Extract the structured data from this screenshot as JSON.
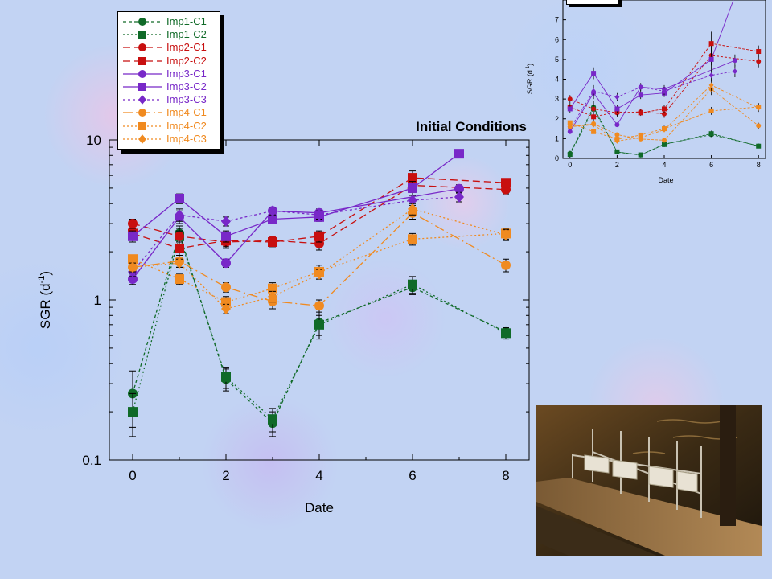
{
  "chart_data": [
    {
      "type": "line",
      "title": "Initial Conditions",
      "xlabel": "Date",
      "ylabel": "SGR (d",
      "ylabel_sup": "-1",
      "ylabel_end": ")",
      "yscale": "log",
      "xlim": [
        -0.5,
        8.5
      ],
      "ylim": [
        0.1,
        10
      ],
      "xticks": [
        0,
        2,
        4,
        6,
        8
      ],
      "xtick_labels": [
        "0",
        "2",
        "4",
        "6",
        "8"
      ],
      "yticks": [
        0.1,
        1,
        10
      ],
      "ytick_labels": [
        "0.1",
        "1",
        "10"
      ],
      "legend": "top-left",
      "series": [
        {
          "name": "Imp1-C1",
          "color": "#106a28",
          "marker": "circle",
          "dash": "4,3",
          "x": [
            0,
            1,
            2,
            3,
            4,
            6,
            8
          ],
          "y": [
            0.26,
            2.6,
            0.32,
            0.17,
            0.72,
            1.2,
            0.63
          ],
          "err": [
            0.1,
            0.3,
            0.05,
            0.03,
            0.15,
            0.12,
            0.04
          ]
        },
        {
          "name": "Imp1-C2",
          "color": "#106a28",
          "marker": "square",
          "dash": "2,3",
          "x": [
            0,
            1,
            2,
            3,
            4,
            6,
            8
          ],
          "y": [
            0.2,
            2.5,
            0.33,
            0.18,
            0.7,
            1.25,
            0.62
          ],
          "err": [
            0.06,
            0.3,
            0.05,
            0.03,
            0.1,
            0.15,
            0.05
          ]
        },
        {
          "name": "Imp2-C1",
          "color": "#c80f0f",
          "marker": "circle",
          "dash": "9,5",
          "x": [
            0,
            1,
            2,
            3,
            4,
            6,
            8
          ],
          "y": [
            3.0,
            2.5,
            2.3,
            2.35,
            2.25,
            5.2,
            4.9
          ],
          "err": [
            0.2,
            0.2,
            0.2,
            0.15,
            0.2,
            0.5,
            0.3
          ]
        },
        {
          "name": "Imp2-C2",
          "color": "#c80f0f",
          "marker": "square",
          "dash": "9,5",
          "x": [
            0,
            1,
            2,
            3,
            4,
            6,
            8
          ],
          "y": [
            2.6,
            2.1,
            2.35,
            2.3,
            2.5,
            5.8,
            5.4
          ],
          "err": [
            0.2,
            0.2,
            0.2,
            0.15,
            0.2,
            0.6,
            0.3
          ]
        },
        {
          "name": "Imp3-C1",
          "color": "#7828c8",
          "marker": "circle",
          "dash": "",
          "x": [
            0,
            1,
            2,
            3,
            4,
            7
          ],
          "y": [
            1.35,
            3.3,
            1.7,
            3.6,
            3.5,
            4.95
          ],
          "err": [
            0.1,
            0.3,
            0.1,
            0.2,
            0.2,
            0.3
          ]
        },
        {
          "name": "Imp3-C2",
          "color": "#7828c8",
          "marker": "square",
          "dash": "",
          "x": [
            0,
            1,
            2,
            3,
            4,
            6,
            7
          ],
          "y": [
            2.5,
            4.3,
            2.5,
            3.2,
            3.3,
            5.0,
            8.2
          ],
          "err": [
            0.2,
            0.3,
            0.2,
            0.2,
            0.2,
            0.5,
            0.4
          ]
        },
        {
          "name": "Imp3-C3",
          "color": "#7828c8",
          "marker": "diamond",
          "dash": "3,3",
          "x": [
            0,
            1,
            2,
            3,
            4,
            6,
            7
          ],
          "y": [
            1.5,
            3.4,
            3.1,
            3.6,
            3.4,
            4.2,
            4.4
          ],
          "err": [
            0.1,
            0.3,
            0.2,
            0.2,
            0.2,
            0.3,
            0.3
          ]
        },
        {
          "name": "Imp4-C1",
          "color": "#f08a20",
          "marker": "circle",
          "dash": "12,4,2,4",
          "x": [
            0,
            1,
            2,
            3,
            4,
            6,
            8
          ],
          "y": [
            1.6,
            1.75,
            1.2,
            0.98,
            0.92,
            3.5,
            1.65
          ],
          "err": [
            0.1,
            0.15,
            0.08,
            0.1,
            0.08,
            0.3,
            0.15
          ]
        },
        {
          "name": "Imp4-C2",
          "color": "#f08a20",
          "marker": "square",
          "dash": "2,3",
          "x": [
            0,
            1,
            2,
            3,
            4,
            6,
            8
          ],
          "y": [
            1.8,
            1.35,
            0.97,
            1.18,
            1.5,
            2.4,
            2.6
          ],
          "err": [
            0.1,
            0.1,
            0.08,
            0.1,
            0.15,
            0.2,
            0.2
          ]
        },
        {
          "name": "Imp4-C3",
          "color": "#f08a20",
          "marker": "diamond",
          "dash": "2,3",
          "x": [
            0,
            1,
            2,
            3,
            4,
            6,
            8
          ],
          "y": [
            1.6,
            1.7,
            0.88,
            1.05,
            1.45,
            3.7,
            2.55
          ],
          "err": [
            0.1,
            0.1,
            0.06,
            0.08,
            0.1,
            0.3,
            0.2
          ]
        }
      ]
    },
    {
      "type": "line",
      "xlabel": "Date",
      "ylabel": "SGR (d",
      "ylabel_sup": "-1",
      "ylabel_end": ")",
      "yscale": "linear",
      "xlim": [
        -0.3,
        8.3
      ],
      "ylim": [
        0,
        8
      ],
      "xticks": [
        0,
        2,
        4,
        6,
        8
      ],
      "xtick_labels": [
        "0",
        "2",
        "4",
        "6",
        "8"
      ],
      "yticks": [
        0,
        1,
        2,
        3,
        4,
        5,
        6,
        7
      ],
      "ytick_labels": [
        "0",
        "1",
        "2",
        "3",
        "4",
        "5",
        "6",
        "7"
      ]
    }
  ]
}
